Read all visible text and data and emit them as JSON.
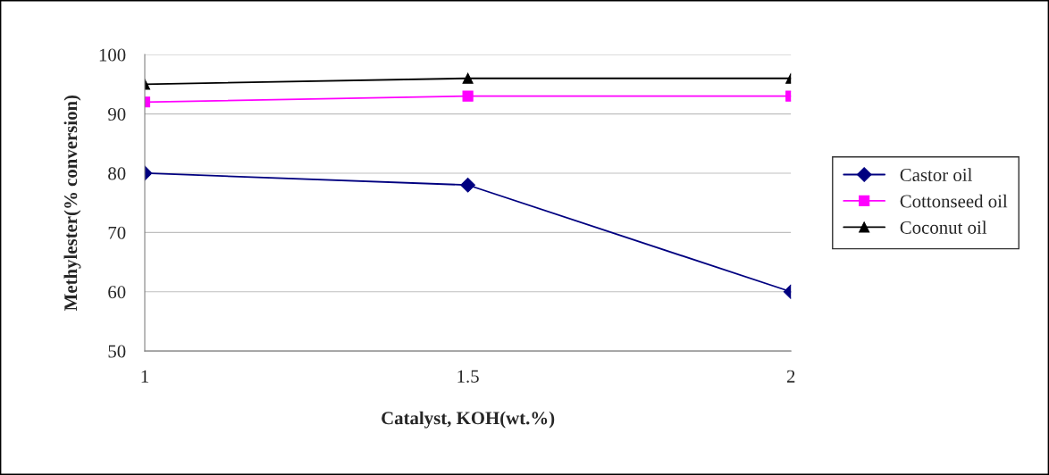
{
  "chart_data": {
    "type": "line",
    "xlabel": "Catalyst, KOH(wt.%)",
    "ylabel": "Methylester(% conversion)",
    "x": [
      1,
      1.5,
      2
    ],
    "xlim": [
      1,
      2
    ],
    "xticks": [
      1,
      1.5,
      2
    ],
    "ylim": [
      50,
      100
    ],
    "yticks": [
      50,
      60,
      70,
      80,
      90,
      100
    ],
    "grid": "y",
    "legend": "right",
    "series": [
      {
        "name": "Castor oil",
        "color": "#000080",
        "marker": "diamond",
        "values": [
          80,
          78,
          60
        ]
      },
      {
        "name": "Cottonseed oil",
        "color": "#ff00ff",
        "marker": "square",
        "values": [
          92,
          93,
          93
        ]
      },
      {
        "name": "Coconut oil",
        "color": "#000000",
        "marker": "triangle",
        "values": [
          95,
          96,
          96
        ]
      }
    ]
  }
}
